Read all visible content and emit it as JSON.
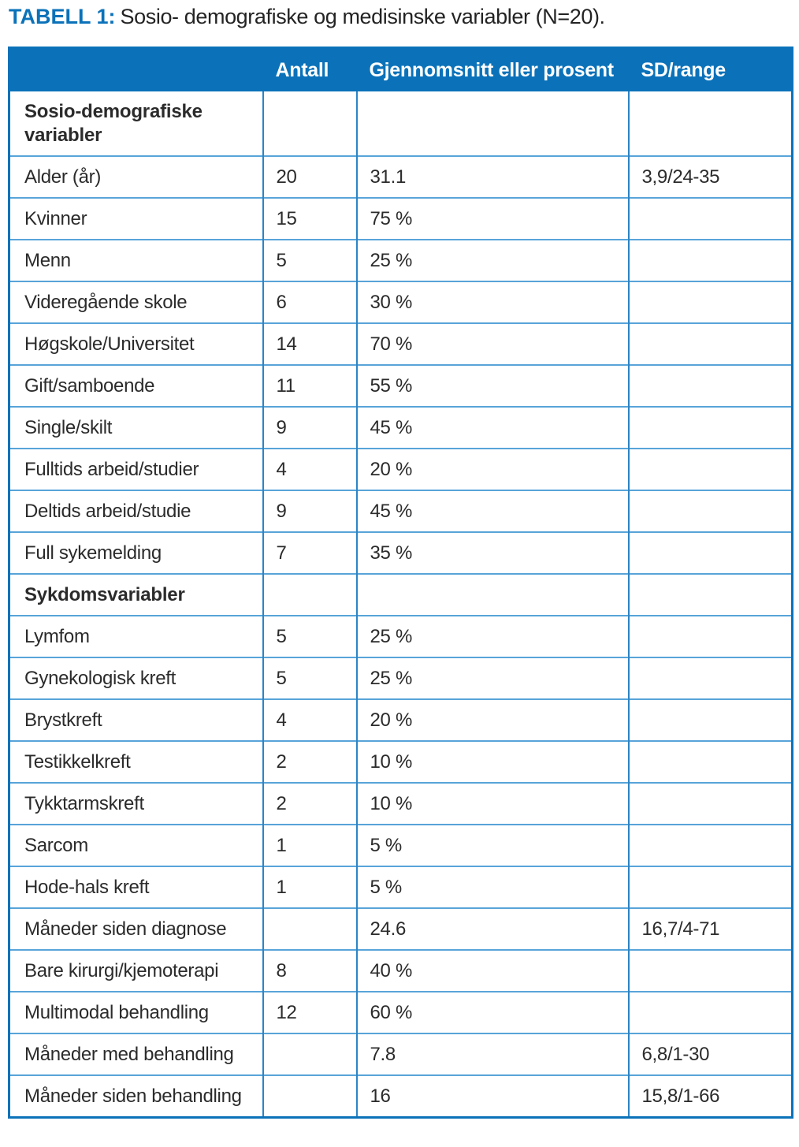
{
  "caption": {
    "label": "TABELL 1:",
    "text": "Sosio- demografiske og medisinske variabler (N=20)."
  },
  "colors": {
    "header_bg": "#0b72b9",
    "header_text": "#ffffff",
    "grid_vertical": "#2b84c6",
    "grid_horizontal": "#58a4d9",
    "outer_border": "#0b72b9",
    "body_text": "#2b2b2b",
    "caption_accent": "#0b72b9"
  },
  "table": {
    "columns": [
      "",
      "Antall",
      "Gjennomsnitt eller prosent",
      "SD/range"
    ],
    "rows": [
      {
        "label": "Sosio-demografiske variabler",
        "section": true,
        "antall": "",
        "value": "",
        "sd": ""
      },
      {
        "label": "Alder (år)",
        "section": false,
        "antall": "20",
        "value": "31.1",
        "sd": "3,9/24-35"
      },
      {
        "label": "Kvinner",
        "section": false,
        "antall": "15",
        "value": "75  %",
        "sd": ""
      },
      {
        "label": "Menn",
        "section": false,
        "antall": "5",
        "value": "25 %",
        "sd": ""
      },
      {
        "label": "Videregående skole",
        "section": false,
        "antall": "6",
        "value": "30 %",
        "sd": ""
      },
      {
        "label": "Høgskole/Universitet",
        "section": false,
        "antall": "14",
        "value": "70 %",
        "sd": ""
      },
      {
        "label": "Gift/samboende",
        "section": false,
        "antall": "11",
        "value": "55 %",
        "sd": ""
      },
      {
        "label": "Single/skilt",
        "section": false,
        "antall": "9",
        "value": "45 %",
        "sd": ""
      },
      {
        "label": "Fulltids arbeid/studier",
        "section": false,
        "antall": "4",
        "value": "20 %",
        "sd": ""
      },
      {
        "label": "Deltids arbeid/studie",
        "section": false,
        "antall": "9",
        "value": "45 %",
        "sd": ""
      },
      {
        "label": "Full sykemelding",
        "section": false,
        "antall": "7",
        "value": "35 %",
        "sd": ""
      },
      {
        "label": "Sykdomsvariabler",
        "section": true,
        "antall": "",
        "value": "",
        "sd": ""
      },
      {
        "label": "Lymfom",
        "section": false,
        "antall": "5",
        "value": "25 %",
        "sd": ""
      },
      {
        "label": "Gynekologisk kreft",
        "section": false,
        "antall": "5",
        "value": "25 %",
        "sd": ""
      },
      {
        "label": "Brystkreft",
        "section": false,
        "antall": "4",
        "value": "20 %",
        "sd": ""
      },
      {
        "label": "Testikkelkreft",
        "section": false,
        "antall": "2",
        "value": "10 %",
        "sd": ""
      },
      {
        "label": "Tykktarmskreft",
        "section": false,
        "antall": "2",
        "value": "10 %",
        "sd": ""
      },
      {
        "label": "Sarcom",
        "section": false,
        "antall": "1",
        "value": "5 %",
        "sd": ""
      },
      {
        "label": "Hode-hals kreft",
        "section": false,
        "antall": "1",
        "value": "5 %",
        "sd": ""
      },
      {
        "label": "Måneder siden diagnose",
        "section": false,
        "antall": "",
        "value": "24.6",
        "sd": "16,7/4-71"
      },
      {
        "label": "Bare kirurgi/kjemoterapi",
        "section": false,
        "antall": "8",
        "value": "40 %",
        "sd": ""
      },
      {
        "label": "Multimodal behandling",
        "section": false,
        "antall": "12",
        "value": "60 %",
        "sd": ""
      },
      {
        "label": "Måneder med behandling",
        "section": false,
        "antall": "",
        "value": "7.8",
        "sd": "6,8/1-30"
      },
      {
        "label": "Måneder siden behandling",
        "section": false,
        "antall": "",
        "value": "16",
        "sd": "15,8/1-66"
      }
    ]
  }
}
